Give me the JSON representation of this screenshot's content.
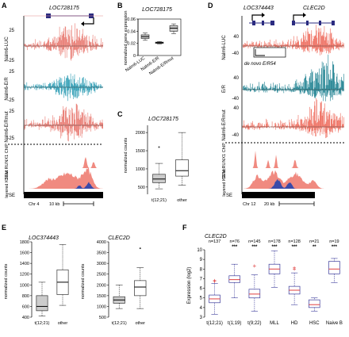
{
  "panels": {
    "A": {
      "letter": "A",
      "gene": "LOC728175",
      "tracks": [
        {
          "name": "Nalm6-LUC",
          "top": "25",
          "bottom": "-25"
        },
        {
          "name": "Nalm6-E/R",
          "top": "25",
          "bottom": "-25"
        },
        {
          "name": "Nalm6-E/Rmut",
          "top": "25",
          "bottom": "-25"
        }
      ],
      "chip_label": "SEM RUNX1 ChIP",
      "layered_label": "layered K27ac",
      "se_label": "SE",
      "chr": "Chr 4",
      "scale": "10 kb"
    },
    "B": {
      "letter": "B",
      "title": "LOC728175",
      "ylabel": "normalized gene expression",
      "yticks": [
        "0.06",
        "0.04",
        "0.02",
        "0"
      ],
      "categories": [
        "Nalm6-LUC",
        "Nalm6-E/R",
        "Nalm6-E/Rmut"
      ]
    },
    "C": {
      "letter": "C",
      "title": "LOC728175",
      "ylabel": "normalized counts",
      "yticks": [
        "2000",
        "1500",
        "1000",
        "500"
      ],
      "categories": [
        "t(12;21)",
        "other"
      ]
    },
    "D": {
      "letter": "D",
      "gene1": "LOC374443",
      "gene2": "CLEC2D",
      "tracks": [
        {
          "name": "Nalm6-LUC",
          "top": "40",
          "bottom": "-40"
        },
        {
          "name": "E/R",
          "top": "40",
          "bottom": "-40"
        },
        {
          "name": "Nalm6-E/Rmut",
          "top": "40",
          "bottom": "-40"
        }
      ],
      "denovo": "de novo E/R54",
      "chip_label": "SEM RUNX1 ChIP",
      "layered_label": "layered K27ac",
      "se_label": "SE",
      "chr": "Chr 12",
      "scale": "20 kb"
    },
    "E": {
      "letter": "E",
      "title1": "LOC374443",
      "title2": "CLEC2D",
      "ylabel": "normalized counts",
      "yticks1": [
        "1800",
        "1600",
        "1400",
        "1200",
        "1000",
        "800",
        "600",
        "400"
      ],
      "yticks2": [
        "4000",
        "3500",
        "3000",
        "2500",
        "2000",
        "1500",
        "1000",
        "500"
      ],
      "categories": [
        "t(12;21)",
        "other"
      ]
    },
    "F": {
      "letter": "F",
      "title": "CLEC2D",
      "ylabel": "Expression (log2)",
      "yticks": [
        "10",
        "9",
        "8",
        "7",
        "6",
        "5",
        "4",
        "3"
      ],
      "n_labels": [
        "n=137",
        "n=76",
        "n=145",
        "n=178",
        "n=128",
        "n=21",
        "n=19"
      ],
      "sig": [
        "",
        "***",
        "***",
        "***",
        "***",
        "**",
        "***"
      ],
      "categories": [
        "t(12;21)",
        "t(1;19)",
        "t(9;22)",
        "MLL",
        "HD",
        "HSC",
        "Naive B"
      ]
    }
  },
  "chart_data": [
    {
      "type": "box",
      "title": "LOC728175",
      "ylabel": "normalized gene expression",
      "ylim": [
        0,
        0.06
      ],
      "categories": [
        "Nalm6-LUC",
        "Nalm6-E/R",
        "Nalm6-E/Rmut"
      ],
      "boxes": [
        {
          "min": 0.025,
          "q1": 0.028,
          "median": 0.031,
          "q3": 0.034,
          "max": 0.037
        },
        {
          "min": 0.019,
          "q1": 0.02,
          "median": 0.021,
          "q3": 0.022,
          "max": 0.023
        },
        {
          "min": 0.036,
          "q1": 0.04,
          "median": 0.045,
          "q3": 0.049,
          "max": 0.052
        }
      ],
      "colors": [
        "#cccccc",
        "#cccccc",
        "#cccccc"
      ]
    },
    {
      "type": "box",
      "title": "LOC728175",
      "ylabel": "normalized counts",
      "ylim": [
        300,
        2200
      ],
      "categories": [
        "t(12;21)",
        "other"
      ],
      "boxes": [
        {
          "min": 450,
          "q1": 620,
          "median": 720,
          "q3": 850,
          "max": 1150,
          "outliers": [
            1600
          ]
        },
        {
          "min": 550,
          "q1": 800,
          "median": 950,
          "q3": 1250,
          "max": 2000
        }
      ],
      "colors": [
        "#cccccc",
        "#ffffff"
      ]
    },
    {
      "type": "box",
      "title": "LOC374443",
      "ylabel": "normalized counts",
      "ylim": [
        400,
        1800
      ],
      "categories": [
        "t(12;21)",
        "other"
      ],
      "boxes": [
        {
          "min": 420,
          "q1": 520,
          "median": 600,
          "q3": 800,
          "max": 1050
        },
        {
          "min": 620,
          "q1": 820,
          "median": 1050,
          "q3": 1280,
          "max": 1750
        }
      ],
      "colors": [
        "#cccccc",
        "#ffffff"
      ]
    },
    {
      "type": "box",
      "title": "CLEC2D",
      "ylabel": "normalized counts",
      "ylim": [
        500,
        4000
      ],
      "categories": [
        "t(12;21)",
        "other"
      ],
      "boxes": [
        {
          "min": 900,
          "q1": 1150,
          "median": 1300,
          "q3": 1450,
          "max": 2000
        },
        {
          "min": 900,
          "q1": 1500,
          "median": 1900,
          "q3": 2200,
          "max": 2800,
          "outliers": [
            3700
          ]
        }
      ],
      "colors": [
        "#cccccc",
        "#ffffff"
      ]
    },
    {
      "type": "box",
      "title": "CLEC2D",
      "ylabel": "Expression (log2)",
      "ylim": [
        3,
        10
      ],
      "categories": [
        "t(12;21)",
        "t(1;19)",
        "t(9;22)",
        "MLL",
        "HD",
        "HSC",
        "Naive B"
      ],
      "boxes": [
        {
          "min": 3.3,
          "q1": 4.5,
          "median": 4.9,
          "q3": 5.3,
          "max": 6.5,
          "outliers": [
            6.7,
            6.8
          ]
        },
        {
          "min": 5.0,
          "q1": 6.6,
          "median": 6.9,
          "q3": 7.3,
          "max": 8.5
        },
        {
          "min": 3.6,
          "q1": 5.0,
          "median": 5.4,
          "q3": 5.9,
          "max": 7.4,
          "outliers": [
            8.3
          ]
        },
        {
          "min": 6.1,
          "q1": 7.5,
          "median": 8.0,
          "q3": 8.5,
          "max": 9.9
        },
        {
          "min": 4.3,
          "q1": 5.4,
          "median": 5.8,
          "q3": 6.2,
          "max": 7.6,
          "outliers": [
            8.0,
            8.1
          ]
        },
        {
          "min": 3.6,
          "q1": 4.0,
          "median": 4.3,
          "q3": 4.8,
          "max": 5.0
        },
        {
          "min": 6.6,
          "q1": 7.5,
          "median": 8.0,
          "q3": 8.8,
          "max": 9.1
        }
      ],
      "colors": [
        "#ffffff",
        "#ffffff",
        "#ffffff",
        "#ffffff",
        "#ffffff",
        "#ffffff",
        "#ffffff"
      ]
    }
  ]
}
